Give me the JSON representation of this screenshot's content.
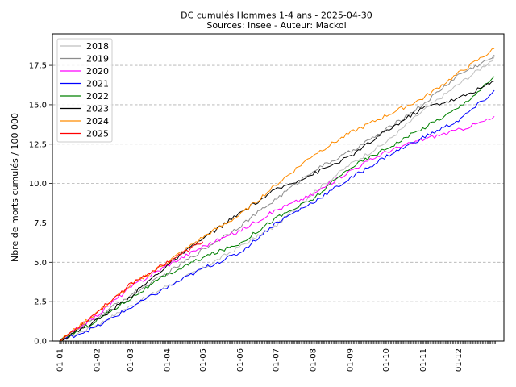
{
  "chart_data": {
    "type": "line",
    "title": "DC cumulés Hommes 1-4 ans  - 2025-04-30",
    "subtitle": "Sources: Insee - Auteur: Mackoi",
    "xlabel": "",
    "ylabel": "Nbre de morts cumulés / 100 000",
    "ylim": [
      0,
      19.5
    ],
    "yticks": [
      "0.0",
      "2.5",
      "5.0",
      "7.5",
      "10.0",
      "12.5",
      "15.0",
      "17.5"
    ],
    "xticks": [
      "01-01",
      "01-02",
      "01-03",
      "01-04",
      "01-05",
      "01-06",
      "01-07",
      "01-08",
      "01-09",
      "01-10",
      "01-11",
      "01-12"
    ],
    "xlim_days": [
      -6,
      372
    ],
    "grid": "horizontal dashed",
    "legend_position": "top-left",
    "series": [
      {
        "name": "2018",
        "color": "#bfbfbf",
        "x": [
          0,
          31,
          59,
          90,
          120,
          151,
          181,
          212,
          243,
          273,
          304,
          334,
          365
        ],
        "y": [
          0.0,
          1.0,
          2.2,
          3.5,
          4.6,
          6.0,
          7.3,
          9.4,
          11.2,
          12.6,
          14.6,
          16.3,
          18.0
        ]
      },
      {
        "name": "2019",
        "color": "#8c8c8c",
        "x": [
          0,
          31,
          59,
          90,
          120,
          151,
          181,
          212,
          243,
          273,
          304,
          334,
          365
        ],
        "y": [
          0.0,
          1.5,
          2.9,
          4.3,
          5.8,
          7.3,
          9.0,
          10.8,
          12.0,
          13.4,
          15.0,
          16.9,
          18.1
        ]
      },
      {
        "name": "2020",
        "color": "#ff00ff",
        "x": [
          0,
          31,
          59,
          90,
          120,
          151,
          181,
          212,
          243,
          273,
          304,
          334,
          365
        ],
        "y": [
          0.0,
          1.6,
          3.4,
          4.8,
          6.0,
          7.0,
          8.3,
          9.3,
          10.8,
          12.0,
          12.8,
          13.4,
          14.2
        ]
      },
      {
        "name": "2021",
        "color": "#0000ff",
        "x": [
          0,
          31,
          59,
          90,
          120,
          151,
          181,
          212,
          243,
          273,
          304,
          334,
          365
        ],
        "y": [
          0.0,
          0.9,
          2.1,
          3.4,
          4.6,
          5.6,
          7.5,
          8.8,
          10.3,
          11.7,
          12.9,
          14.0,
          15.9
        ]
      },
      {
        "name": "2022",
        "color": "#008000",
        "x": [
          0,
          31,
          59,
          90,
          120,
          151,
          181,
          212,
          243,
          273,
          304,
          334,
          365
        ],
        "y": [
          0.0,
          1.3,
          2.7,
          4.2,
          5.3,
          6.2,
          7.8,
          9.0,
          11.0,
          12.2,
          13.5,
          14.8,
          16.8
        ]
      },
      {
        "name": "2023",
        "color": "#000000",
        "x": [
          0,
          31,
          59,
          90,
          120,
          151,
          181,
          212,
          243,
          273,
          304,
          334,
          365
        ],
        "y": [
          0.0,
          1.3,
          2.8,
          4.8,
          6.5,
          8.1,
          9.6,
          10.6,
          11.7,
          13.3,
          14.8,
          15.4,
          16.5
        ]
      },
      {
        "name": "2024",
        "color": "#ff8c00",
        "x": [
          0,
          31,
          59,
          90,
          120,
          151,
          181,
          212,
          243,
          273,
          304,
          334,
          365
        ],
        "y": [
          0.0,
          1.8,
          3.5,
          5.0,
          6.6,
          8.0,
          9.9,
          11.8,
          13.2,
          14.3,
          15.4,
          17.0,
          18.6
        ]
      },
      {
        "name": "2025",
        "color": "#ff0000",
        "x": [
          0,
          31,
          59,
          90,
          120
        ],
        "y": [
          0.0,
          1.8,
          3.6,
          5.0,
          6.3
        ]
      }
    ]
  }
}
